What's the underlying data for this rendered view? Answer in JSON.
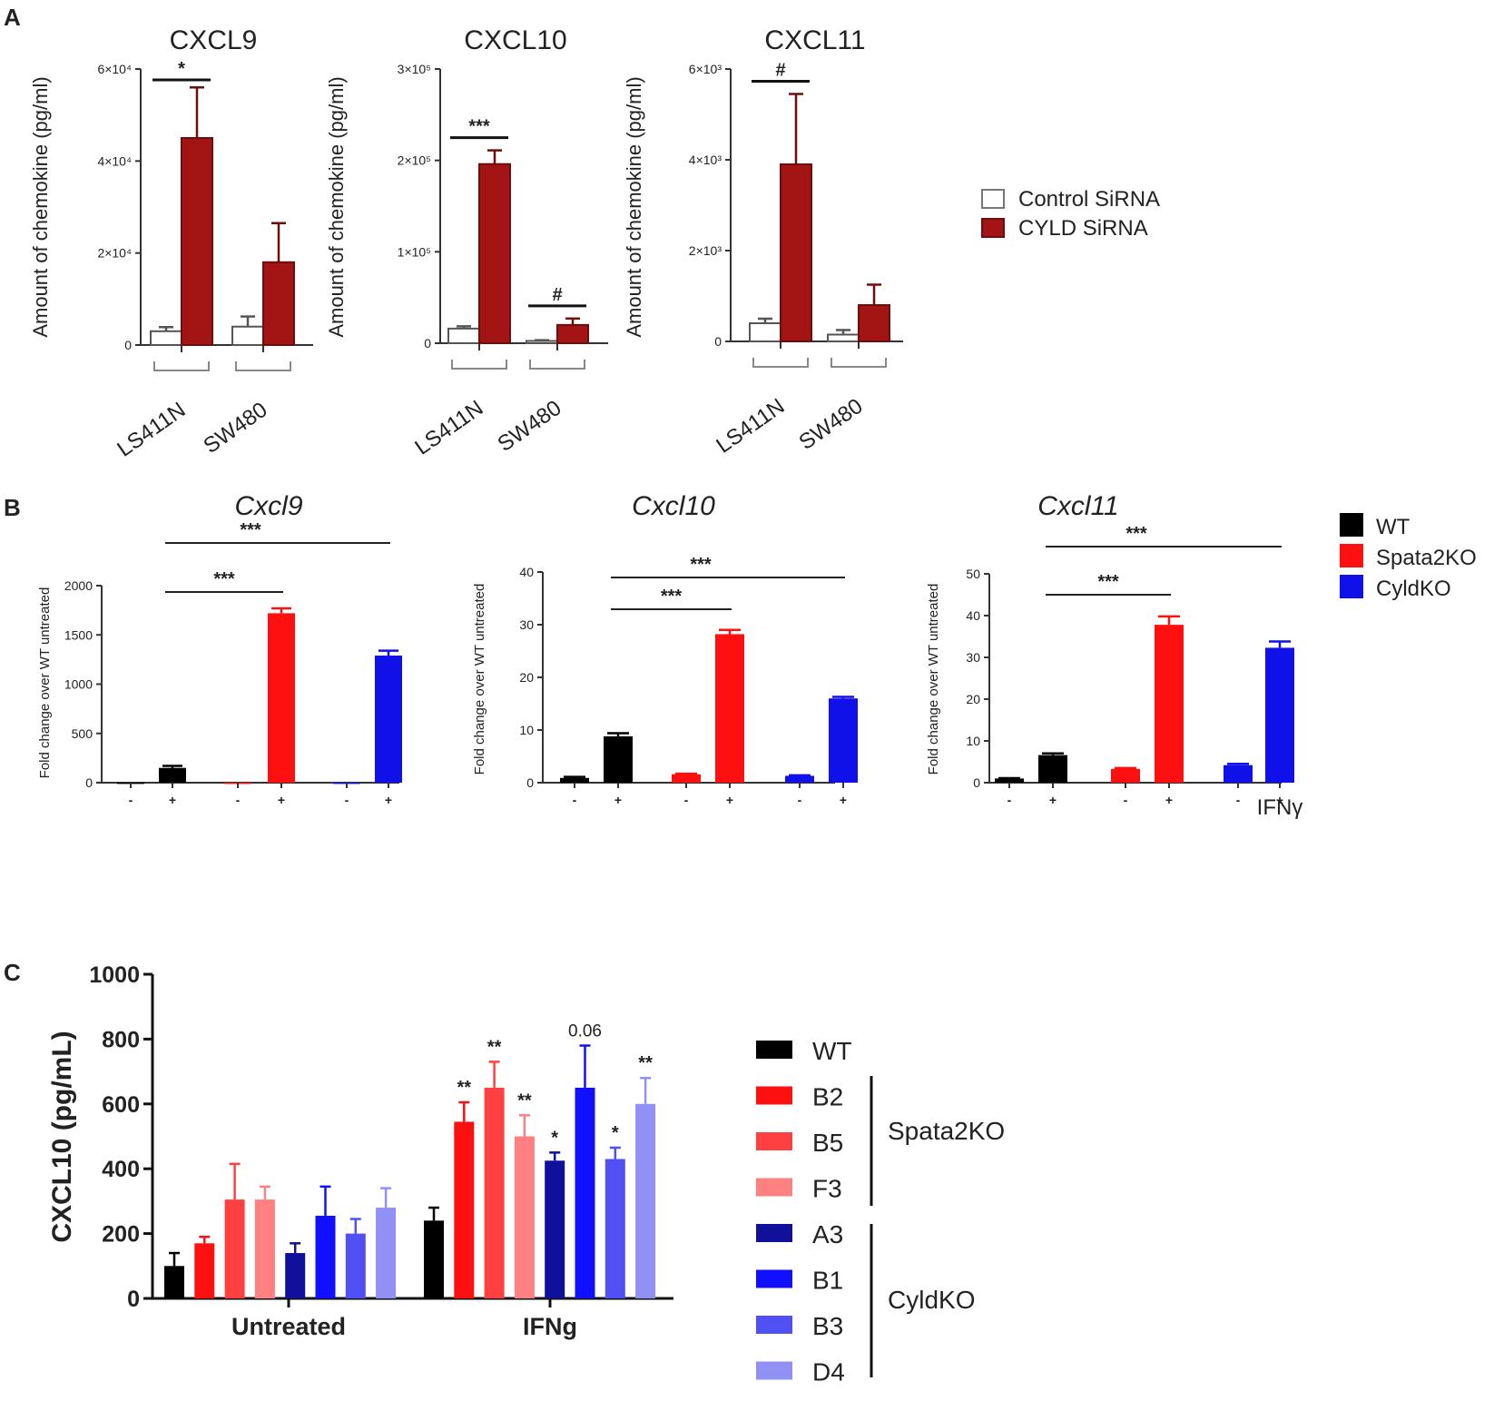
{
  "panels": {
    "a": "A",
    "b": "B",
    "c": "C"
  },
  "chart_data": [
    {
      "id": "A1",
      "panel": "A",
      "type": "bar",
      "title": "CXCL9",
      "ylabel": "Amount of chemokine (pg/ml)",
      "ylim": [
        0,
        60000
      ],
      "yticks": [
        {
          "v": 0,
          "t": "0"
        },
        {
          "v": 20000,
          "t": "2×10⁴"
        },
        {
          "v": 40000,
          "t": "4×10⁴"
        },
        {
          "v": 60000,
          "t": "6×10⁴"
        }
      ],
      "categories": [
        "LS411N",
        "SW480"
      ],
      "series": [
        {
          "name": "Control SiRNA",
          "color": "#ffffff",
          "values": [
            3000,
            4000
          ],
          "errors": [
            900,
            2200
          ]
        },
        {
          "name": "CYLD SiRNA",
          "color": "#a31515",
          "values": [
            45000,
            18000
          ],
          "errors": [
            11000,
            8500
          ]
        }
      ],
      "sig": [
        {
          "group": 0,
          "label": "*"
        }
      ]
    },
    {
      "id": "A2",
      "panel": "A",
      "type": "bar",
      "title": "CXCL10",
      "ylabel": "Amount of chemokine (pg/ml)",
      "ylim": [
        0,
        300000
      ],
      "yticks": [
        {
          "v": 0,
          "t": "0"
        },
        {
          "v": 100000,
          "t": "1×10⁵"
        },
        {
          "v": 200000,
          "t": "2×10⁵"
        },
        {
          "v": 300000,
          "t": "3×10⁵"
        }
      ],
      "categories": [
        "LS411N",
        "SW480"
      ],
      "series": [
        {
          "name": "Control SiRNA",
          "color": "#ffffff",
          "values": [
            16000,
            2500
          ],
          "errors": [
            2500,
            800
          ]
        },
        {
          "name": "CYLD SiRNA",
          "color": "#a31515",
          "values": [
            196000,
            20000
          ],
          "errors": [
            15000,
            7000
          ]
        }
      ],
      "sig": [
        {
          "group": 0,
          "label": "***"
        },
        {
          "group": 1,
          "label": "#"
        }
      ]
    },
    {
      "id": "A3",
      "panel": "A",
      "type": "bar",
      "title": "CXCL11",
      "ylabel": "Amount of chemokine (pg/ml)",
      "ylim": [
        0,
        6000
      ],
      "yticks": [
        {
          "v": 0,
          "t": "0"
        },
        {
          "v": 2000,
          "t": "2×10³"
        },
        {
          "v": 4000,
          "t": "4×10³"
        },
        {
          "v": 6000,
          "t": "6×10³"
        }
      ],
      "categories": [
        "LS411N",
        "SW480"
      ],
      "series": [
        {
          "name": "Control SiRNA",
          "color": "#ffffff",
          "values": [
            400,
            150
          ],
          "errors": [
            100,
            100
          ]
        },
        {
          "name": "CYLD SiRNA",
          "color": "#a31515",
          "values": [
            3900,
            800
          ],
          "errors": [
            1550,
            450
          ]
        }
      ],
      "sig": [
        {
          "group": 0,
          "label": "#"
        }
      ]
    },
    {
      "id": "B1",
      "panel": "B",
      "type": "bar",
      "title": "Cxcl9",
      "ylabel": "Fold change over WT untreated",
      "ylim": [
        0,
        2000
      ],
      "yticks": [
        {
          "v": 0,
          "t": "0"
        },
        {
          "v": 500,
          "t": "500"
        },
        {
          "v": 1000,
          "t": "1000"
        },
        {
          "v": 1500,
          "t": "1500"
        },
        {
          "v": 2000,
          "t": "2000"
        }
      ],
      "categories": [
        "-",
        "+",
        "-",
        "+",
        "-",
        "+"
      ],
      "values": [
        1,
        150,
        1,
        1720,
        1,
        1290
      ],
      "errors": [
        0,
        20,
        0,
        50,
        0,
        50
      ],
      "colors": [
        "#000000",
        "#000000",
        "#ff1010",
        "#ff1010",
        "#1010e8",
        "#1010e8"
      ],
      "brackets": [
        {
          "from": 1,
          "to": 3,
          "label": "***"
        },
        {
          "from": 1,
          "to": 5,
          "label": "***"
        }
      ]
    },
    {
      "id": "B2",
      "panel": "B",
      "type": "bar",
      "title": "Cxcl10",
      "ylabel": "Fold change over WT untreated",
      "ylim": [
        0,
        40
      ],
      "yticks": [
        {
          "v": 0,
          "t": "0"
        },
        {
          "v": 10,
          "t": "10"
        },
        {
          "v": 20,
          "t": "20"
        },
        {
          "v": 30,
          "t": "30"
        },
        {
          "v": 40,
          "t": "40"
        }
      ],
      "categories": [
        "-",
        "+",
        "-",
        "+",
        "-",
        "+"
      ],
      "values": [
        0.9,
        8.8,
        1.6,
        28.2,
        1.3,
        16.0
      ],
      "errors": [
        0.2,
        0.6,
        0.1,
        0.8,
        0.1,
        0.3
      ],
      "colors": [
        "#000000",
        "#000000",
        "#ff1010",
        "#ff1010",
        "#1010e8",
        "#1010e8"
      ],
      "brackets": [
        {
          "from": 1,
          "to": 3,
          "label": "***"
        },
        {
          "from": 1,
          "to": 5,
          "label": "***"
        }
      ]
    },
    {
      "id": "B3",
      "panel": "B",
      "type": "bar",
      "title": "Cxcl11",
      "ylabel": "Fold change over WT untreated",
      "ylim": [
        0,
        50
      ],
      "yticks": [
        {
          "v": 0,
          "t": "0"
        },
        {
          "v": 10,
          "t": "10"
        },
        {
          "v": 20,
          "t": "20"
        },
        {
          "v": 30,
          "t": "30"
        },
        {
          "v": 40,
          "t": "40"
        },
        {
          "v": 50,
          "t": "50"
        }
      ],
      "categories": [
        "-",
        "+",
        "-",
        "+",
        "-",
        "+"
      ],
      "values": [
        1.0,
        6.6,
        3.3,
        37.8,
        4.2,
        32.3
      ],
      "errors": [
        0.1,
        0.4,
        0.2,
        2.0,
        0.3,
        1.5
      ],
      "colors": [
        "#000000",
        "#000000",
        "#ff1010",
        "#ff1010",
        "#1010e8",
        "#1010e8"
      ],
      "brackets": [
        {
          "from": 1,
          "to": 3,
          "label": "***"
        },
        {
          "from": 1,
          "to": 5,
          "label": "***"
        }
      ],
      "xlabel": "IFNγ"
    },
    {
      "id": "C",
      "panel": "C",
      "type": "bar",
      "title": "",
      "ylabel": "CXCL10 (pg/mL)",
      "ylim": [
        0,
        1000
      ],
      "yticks": [
        {
          "v": 0,
          "t": "0"
        },
        {
          "v": 200,
          "t": "200"
        },
        {
          "v": 400,
          "t": "400"
        },
        {
          "v": 600,
          "t": "600"
        },
        {
          "v": 800,
          "t": "800"
        },
        {
          "v": 1000,
          "t": "1000"
        }
      ],
      "categories": [
        "Untreated",
        "IFNg"
      ],
      "series": [
        {
          "name": "WT",
          "color": "#000000",
          "values": [
            100,
            240
          ],
          "errors": [
            40,
            40
          ],
          "sig": [
            "",
            ""
          ]
        },
        {
          "name": "B2",
          "color": "#ff1010",
          "values": [
            170,
            545
          ],
          "errors": [
            20,
            60
          ],
          "sig": [
            "",
            "**"
          ]
        },
        {
          "name": "B5",
          "color": "#ff4040",
          "values": [
            305,
            650
          ],
          "errors": [
            110,
            80
          ],
          "sig": [
            "",
            "**"
          ]
        },
        {
          "name": "F3",
          "color": "#ff8080",
          "values": [
            305,
            500
          ],
          "errors": [
            40,
            65
          ],
          "sig": [
            "",
            "**"
          ]
        },
        {
          "name": "A3",
          "color": "#10109a",
          "values": [
            140,
            425
          ],
          "errors": [
            30,
            25
          ],
          "sig": [
            "",
            "*"
          ]
        },
        {
          "name": "B1",
          "color": "#1010ff",
          "values": [
            255,
            650
          ],
          "errors": [
            90,
            130
          ],
          "sig": [
            "",
            "0.06"
          ]
        },
        {
          "name": "B3",
          "color": "#5050f5",
          "values": [
            200,
            430
          ],
          "errors": [
            45,
            35
          ],
          "sig": [
            "",
            "*"
          ]
        },
        {
          "name": "D4",
          "color": "#9090f5",
          "values": [
            280,
            600
          ],
          "errors": [
            60,
            80
          ],
          "sig": [
            "",
            "**"
          ]
        }
      ]
    }
  ],
  "legends": {
    "a": [
      {
        "label": "Control SiRNA",
        "color": "#ffffff"
      },
      {
        "label": "CYLD SiRNA",
        "color": "#a31515"
      }
    ],
    "b": [
      {
        "label": "WT",
        "color": "#000000"
      },
      {
        "label": "Spata2KO",
        "color": "#ff1010"
      },
      {
        "label": "CyldKO",
        "color": "#1010e8"
      }
    ],
    "c": [
      {
        "label": "WT",
        "color": "#000000"
      },
      {
        "label": "B2",
        "color": "#ff1010"
      },
      {
        "label": "B5",
        "color": "#ff4040"
      },
      {
        "label": "F3",
        "color": "#ff8080"
      },
      {
        "label": "A3",
        "color": "#10109a"
      },
      {
        "label": "B1",
        "color": "#1010ff"
      },
      {
        "label": "B3",
        "color": "#5050f5"
      },
      {
        "label": "D4",
        "color": "#9090f5"
      }
    ],
    "c_groups": [
      {
        "label": "Spata2KO"
      },
      {
        "label": "CyldKO"
      }
    ]
  }
}
